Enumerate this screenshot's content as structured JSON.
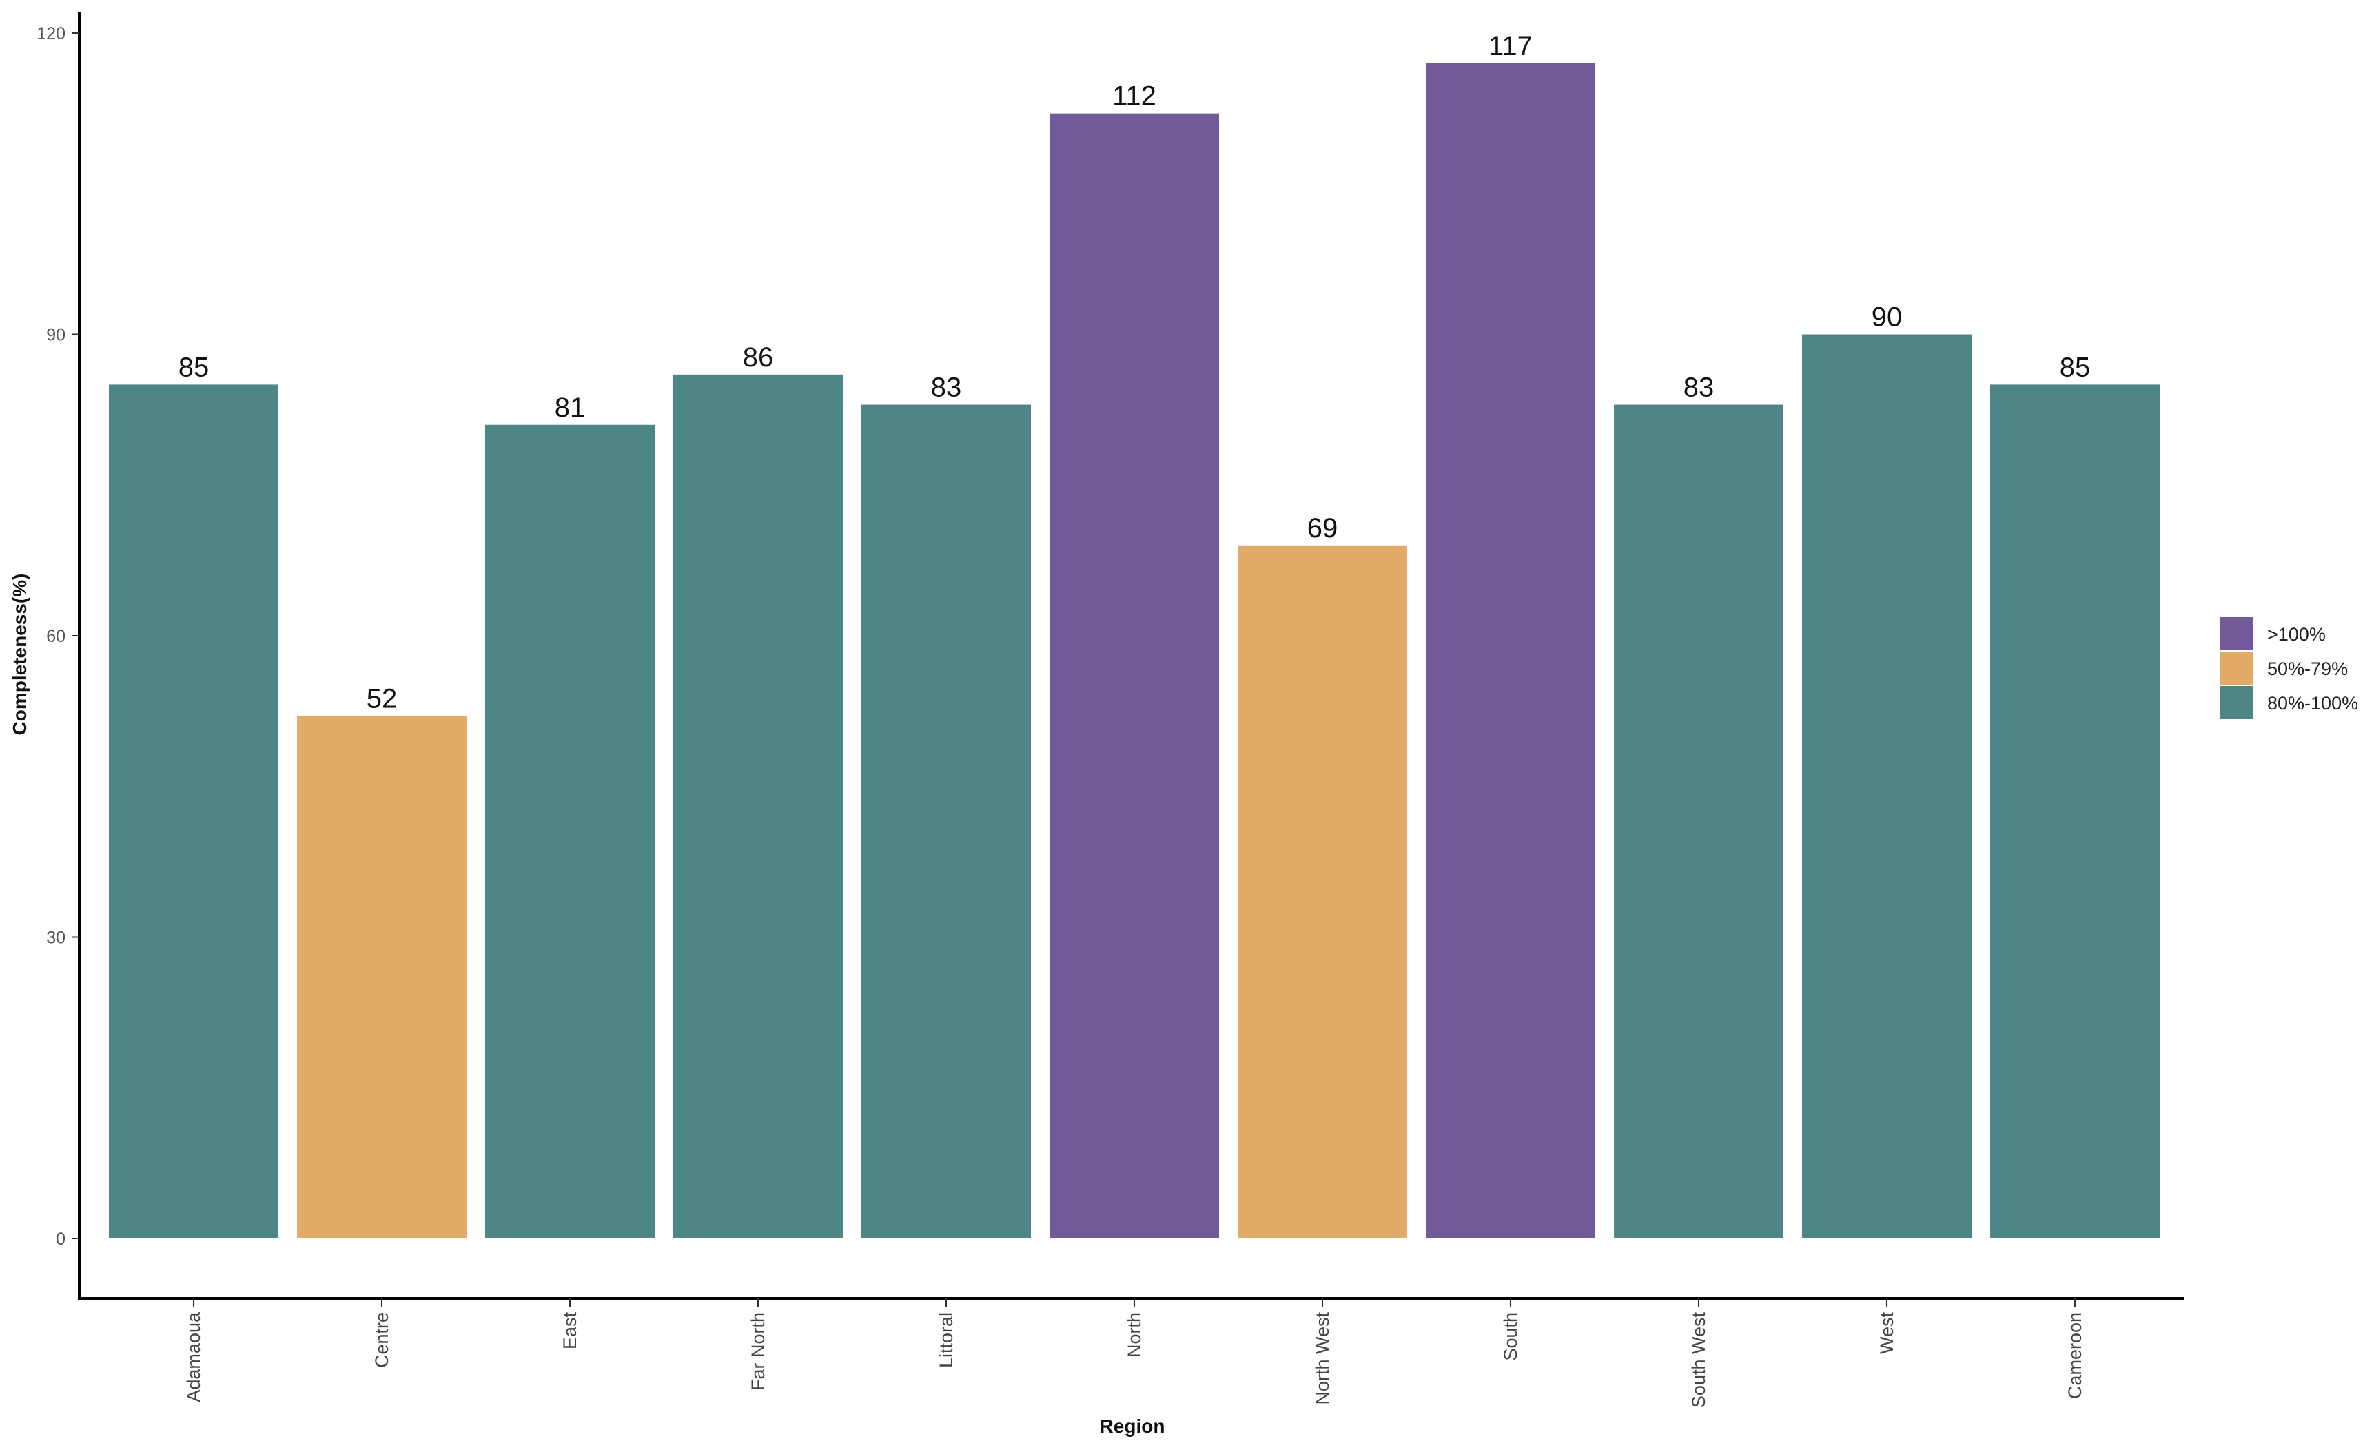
{
  "chart_data": {
    "type": "bar",
    "title": "",
    "xlabel": "Region",
    "ylabel": "Completeness(%)",
    "ylim": [
      0,
      120
    ],
    "yticks": [
      0,
      30,
      60,
      90,
      120
    ],
    "grid": false,
    "legend_position": "right",
    "categories": [
      "Adamaoua",
      "Centre",
      "East",
      "Far North",
      "Littoral",
      "North",
      "North West",
      "South",
      "South West",
      "West",
      "Cameroon"
    ],
    "values": [
      85,
      52,
      81,
      86,
      83,
      112,
      69,
      117,
      83,
      90,
      85
    ],
    "groups": [
      ">100%"
    ],
    "bar_groups": [
      "80%-100%",
      "50%-79%",
      "80%-100%",
      "80%-100%",
      "80%-100%",
      ">100%",
      "50%-79%",
      ">100%",
      "80%-100%",
      "80%-100%",
      "80%-100%"
    ],
    "legend": [
      {
        "label": ">100%",
        "color": "#725a98"
      },
      {
        "label": "50%-79%",
        "color": "#e2ab67"
      },
      {
        "label": "80%-100%",
        "color": "#4d8684"
      }
    ]
  }
}
